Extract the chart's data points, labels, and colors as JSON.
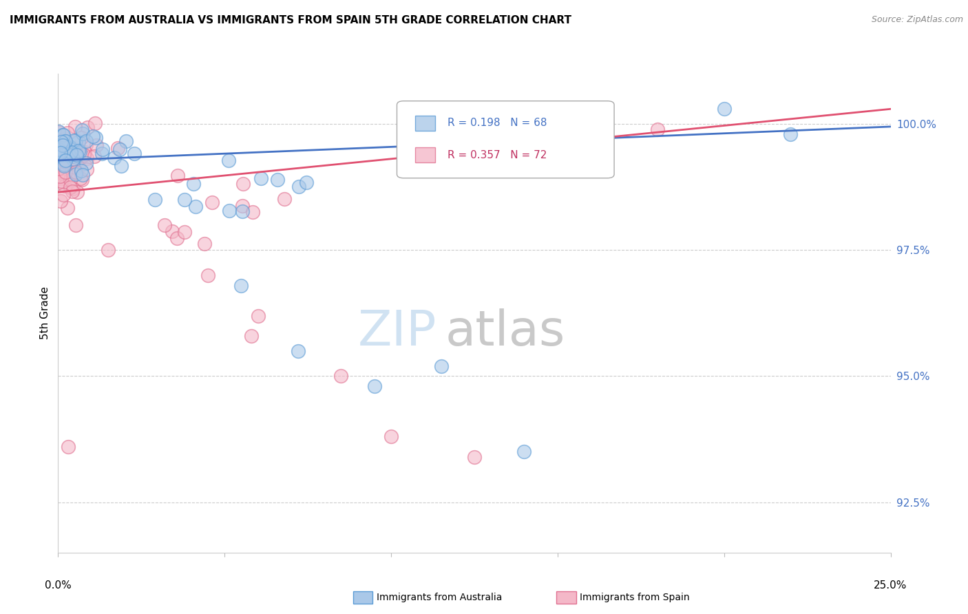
{
  "title": "IMMIGRANTS FROM AUSTRALIA VS IMMIGRANTS FROM SPAIN 5TH GRADE CORRELATION CHART",
  "source": "Source: ZipAtlas.com",
  "ylabel": "5th Grade",
  "ymin": 91.5,
  "ymax": 101.0,
  "xmin": 0.0,
  "xmax": 25.0,
  "yticks": [
    92.5,
    95.0,
    97.5,
    100.0
  ],
  "ytick_labels": [
    "92.5%",
    "95.0%",
    "97.5%",
    "100.0%"
  ],
  "R_australia": 0.198,
  "N_australia": 68,
  "R_spain": 0.357,
  "N_spain": 72,
  "color_australia_fill": "#aac8e8",
  "color_australia_edge": "#5b9bd5",
  "color_spain_fill": "#f4b8c8",
  "color_spain_edge": "#e07090",
  "color_australia_line": "#4472c4",
  "color_spain_line": "#e05070",
  "legend_label_australia": "Immigrants from Australia",
  "legend_label_spain": "Immigrants from Spain",
  "watermark_zip_color": "#c8ddf0",
  "watermark_atlas_color": "#c0c0c0",
  "aus_line_x0": 0.0,
  "aus_line_y0": 99.28,
  "aus_line_x1": 25.0,
  "aus_line_y1": 99.95,
  "spa_line_x0": 0.0,
  "spa_line_y0": 98.65,
  "spa_line_x1": 25.0,
  "spa_line_y1": 100.3
}
